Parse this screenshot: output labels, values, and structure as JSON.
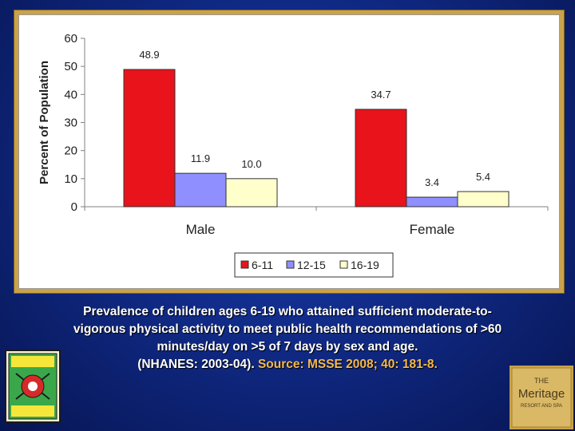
{
  "caption": {
    "line1": "Prevalence of children ages 6-19 who attained sufficient moderate-to-",
    "line2": "vigorous physical activity to meet public health recommendations of >60",
    "line3": "minutes/day on >5 of 7 days by sex and age.",
    "line4_prefix": "(NHANES: 2003-04).",
    "line4_source": "Source: MSSE 2008; 40: 181-8."
  },
  "chart_data": {
    "type": "bar",
    "categories": [
      "Male",
      "Female"
    ],
    "series": [
      {
        "name": "6-11",
        "values": [
          48.9,
          34.7
        ],
        "color": "#e8131b"
      },
      {
        "name": "12-15",
        "values": [
          11.9,
          3.4
        ],
        "color": "#8f8fff"
      },
      {
        "name": "16-19",
        "values": [
          10.0,
          5.4
        ],
        "color": "#ffffcc"
      }
    ],
    "data_labels": [
      [
        "48.9",
        "11.9",
        "10.0"
      ],
      [
        "34.7",
        "3.4",
        "5.4"
      ]
    ],
    "ylabel": "Percent of Population",
    "ylim": [
      0,
      60
    ],
    "yticks": [
      0,
      10,
      20,
      30,
      40,
      50,
      60
    ],
    "grid": false,
    "legend_position": "bottom"
  },
  "logos": {
    "school": "school-administrators-health-wellness-logo",
    "resort": "meritage-resort-logo"
  },
  "resort_logo_text": {
    "line1": "THE",
    "line2": "Meritage",
    "line3": "RESORT AND SPA"
  }
}
